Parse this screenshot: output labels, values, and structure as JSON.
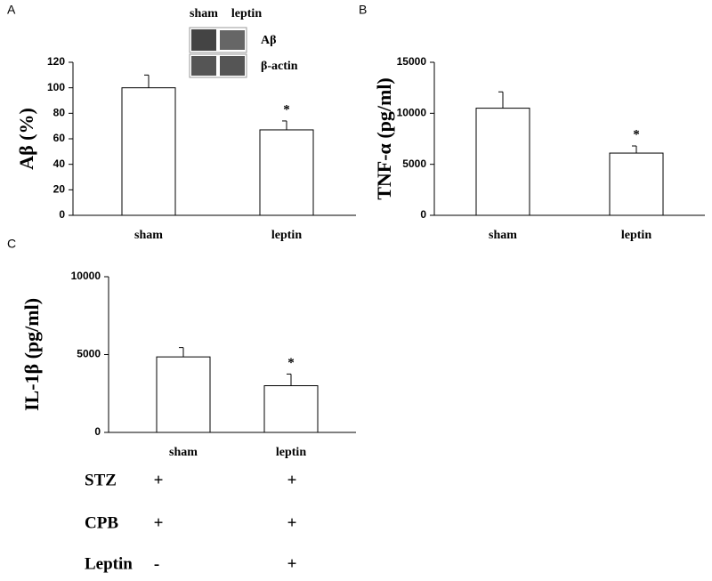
{
  "chart_data": [
    {
      "type": "bar",
      "panel": "A",
      "y_label": "Aβ (%)",
      "categories": [
        "sham",
        "leptin"
      ],
      "values": [
        100,
        67
      ],
      "errors": [
        10,
        7
      ],
      "significance": [
        null,
        "*"
      ],
      "color": "#ffffff",
      "ylim": [
        0,
        120
      ],
      "yticks": [
        0,
        20,
        40,
        60,
        80,
        100,
        120
      ],
      "blot": {
        "lanes": [
          "sham",
          "leptin"
        ],
        "bands": [
          "Aβ",
          "β-actin"
        ]
      }
    },
    {
      "type": "bar",
      "panel": "B",
      "y_label": "TNF-α (pg/ml)",
      "categories": [
        "sham",
        "leptin"
      ],
      "values": [
        10500,
        6100
      ],
      "errors": [
        1600,
        700
      ],
      "significance": [
        null,
        "*"
      ],
      "color": "#ffffff",
      "ylim": [
        0,
        15000
      ],
      "yticks": [
        0,
        5000,
        10000,
        15000
      ]
    },
    {
      "type": "bar",
      "panel": "C",
      "y_label": "IL-1β (pg/ml)",
      "categories": [
        "sham",
        "leptin"
      ],
      "values": [
        4850,
        3000
      ],
      "errors": [
        600,
        750
      ],
      "significance": [
        null,
        "*"
      ],
      "color": "#ffffff",
      "ylim": [
        0,
        10000
      ],
      "yticks": [
        0,
        5000,
        10000
      ],
      "conditions": [
        [
          "STZ",
          "+",
          "+"
        ],
        [
          "CPB",
          "+",
          "+"
        ],
        [
          "Leptin",
          "-",
          "+"
        ]
      ]
    }
  ]
}
